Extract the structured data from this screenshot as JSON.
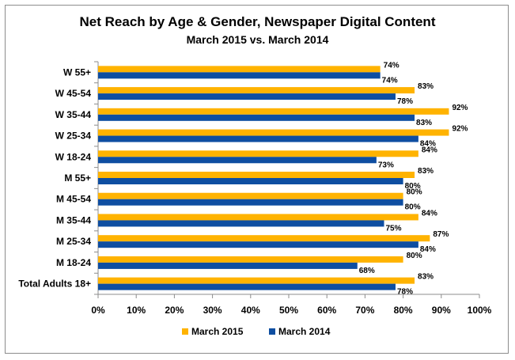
{
  "chart_data": {
    "type": "bar",
    "orientation": "horizontal",
    "title": "Net Reach by Age & Gender, Newspaper Digital Content",
    "subtitle": "March 2015 vs. March 2014",
    "categories": [
      "W 55+",
      "W 45-54",
      "W 35-44",
      "W 25-34",
      "W 18-24",
      "M 55+",
      "M 45-54",
      "M 35-44",
      "M 25-34",
      "M 18-24",
      "Total Adults 18+"
    ],
    "series": [
      {
        "name": "March 2015",
        "color": "#FFB300",
        "values": [
          74,
          83,
          92,
          92,
          84,
          83,
          80,
          84,
          87,
          80,
          83
        ],
        "labels": [
          "74%",
          "83%",
          "92%",
          "92%",
          "84%",
          "83%",
          "80%",
          "84%",
          "87%",
          "80%",
          "83%"
        ]
      },
      {
        "name": "March 2014",
        "color": "#0E4EA1",
        "values": [
          74,
          78,
          83,
          84,
          73,
          80,
          80,
          75,
          84,
          68,
          78
        ],
        "labels": [
          "74%",
          "78%",
          "83%",
          "84%",
          "73%",
          "80%",
          "80%",
          "75%",
          "84%",
          "68%",
          "78%"
        ]
      }
    ],
    "xlim": [
      0,
      100
    ],
    "xticks": [
      "0%",
      "10%",
      "20%",
      "30%",
      "40%",
      "50%",
      "60%",
      "70%",
      "80%",
      "90%",
      "100%"
    ],
    "grid": false,
    "legend_position": "bottom"
  }
}
